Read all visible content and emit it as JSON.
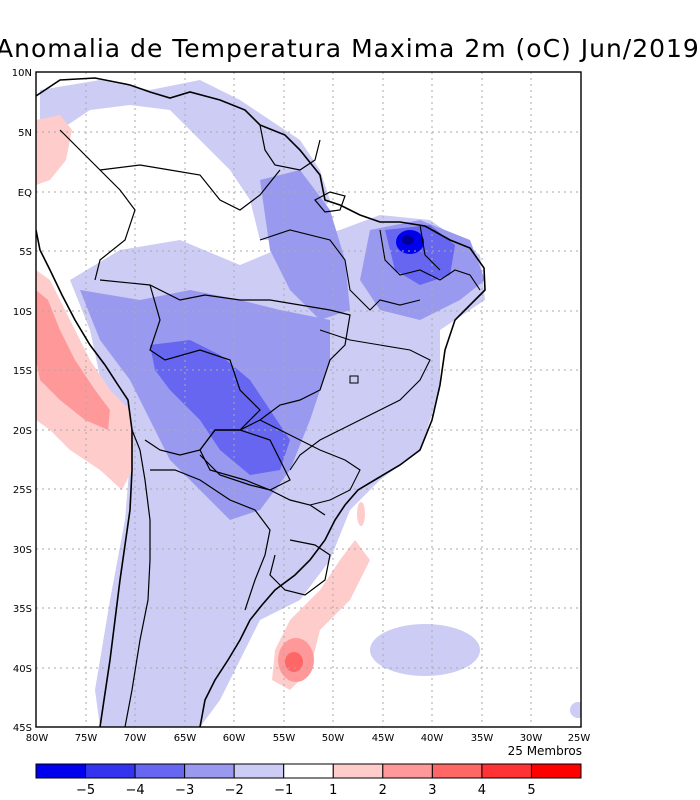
{
  "title": "Anomalia de Temperatura Maxima 2m (oC) Jun/2019",
  "members_note": "25 Membros",
  "lat_labels": [
    "10N",
    "5N",
    "EQ",
    "5S",
    "10S",
    "15S",
    "20S",
    "25S",
    "30S",
    "35S",
    "40S",
    "45S"
  ],
  "lon_labels": [
    "80W",
    "75W",
    "70W",
    "65W",
    "60W",
    "55W",
    "50W",
    "45W",
    "40W",
    "35W",
    "30W",
    "25W"
  ],
  "colorbar": {
    "labels": [
      "-5",
      "-4",
      "-3",
      "-2",
      "-1",
      "1",
      "2",
      "3",
      "4",
      "5"
    ],
    "colors": [
      "#0000ee",
      "#3333f0",
      "#6666f0",
      "#9999f0",
      "#ccccf5",
      "#ffffff",
      "#ffcccc",
      "#ff9999",
      "#ff6666",
      "#ff3333",
      "#ff0000"
    ]
  },
  "colors": {
    "land_outline": "#000000",
    "grid": "#aaaaaa"
  }
}
